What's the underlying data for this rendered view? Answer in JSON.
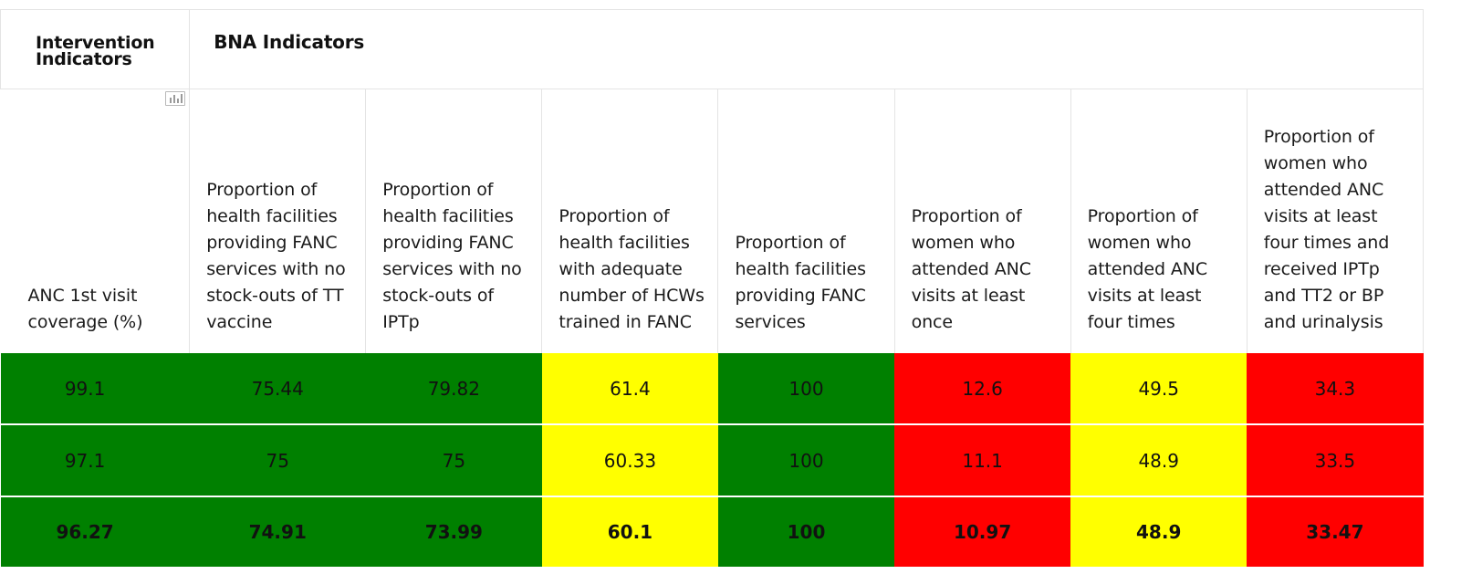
{
  "colors": {
    "green": "#008000",
    "yellow": "#ffff00",
    "red": "#ff0000"
  },
  "group_headers": {
    "intervention": "Intervention Indicators",
    "bna": "BNA Indicators"
  },
  "chart_icon": "bar-chart-icon",
  "columns": [
    "ANC 1st visit coverage (%)",
    "Proportion of health facilities providing FANC services with no stock-outs of TT vaccine",
    "Proportion of health facilities providing FANC services with no stock-outs of IPTp",
    "Proportion of health facilities with adequate number of HCWs trained in FANC",
    "Proportion of health facilities providing FANC services",
    "Proportion of women who attended ANC visits at least once",
    "Proportion of women who attended ANC visits at least four times",
    "Proportion of women who attended ANC visits at least four times and received  IPTp and TT2 or BP and urinalysis"
  ],
  "column_colors": [
    "green",
    "green",
    "green",
    "yellow",
    "green",
    "red",
    "yellow",
    "red"
  ],
  "rows": [
    [
      "99.1",
      "75.44",
      "79.82",
      "61.4",
      "100",
      "12.6",
      "49.5",
      "34.3"
    ],
    [
      "97.1",
      "75",
      "75",
      "60.33",
      "100",
      "11.1",
      "48.9",
      "33.5"
    ],
    [
      "96.27",
      "74.91",
      "73.99",
      "60.1",
      "100",
      "10.97",
      "48.9",
      "33.47"
    ]
  ]
}
